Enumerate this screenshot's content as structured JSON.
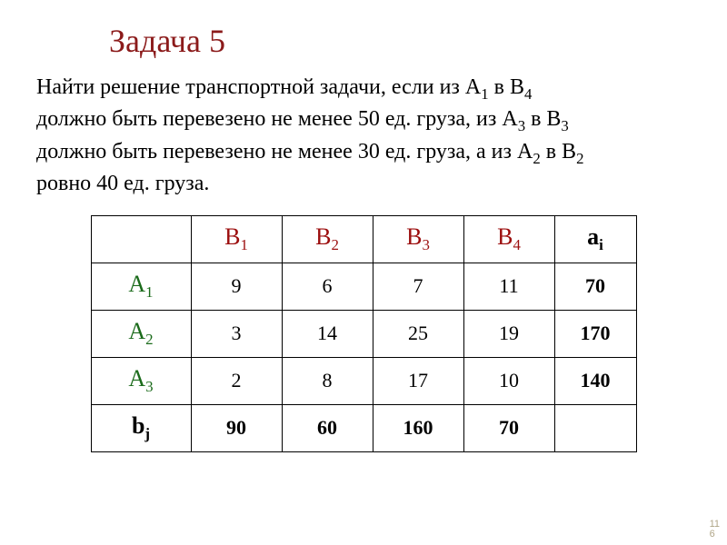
{
  "title": "Задача 5",
  "problem": {
    "line1_pre": "Найти решение транспортной задачи, если из А",
    "a_src1": "1",
    "line1_mid": " в В",
    "b_dst1": "4",
    "line2": "должно быть перевезено не менее 50 ед. груза, из А",
    "a_src2": "3",
    "line2_mid": " в В",
    "b_dst2": "3",
    "line3": "должно быть перевезено не менее 30 ед. груза, а из А",
    "a_src3": "2",
    "line3_mid": " в В",
    "b_dst3": "2",
    "line4": "ровно 40 ед. груза."
  },
  "table": {
    "headers": {
      "b1": "1",
      "b2": "2",
      "b3": "3",
      "b4": "4",
      "ai": "i"
    },
    "row_labels": {
      "a1": "1",
      "a2": "2",
      "a3": "3",
      "bj": "j"
    },
    "Bsym": "В",
    "Asym": "А",
    "aSym": "a",
    "bSym": "b",
    "rows": [
      {
        "c1": "9",
        "c2": "6",
        "c3": "7",
        "c4": "11",
        "a": "70"
      },
      {
        "c1": "3",
        "c2": "14",
        "c3": "25",
        "c4": "19",
        "a": "170"
      },
      {
        "c1": "2",
        "c2": "8",
        "c3": "17",
        "c4": "10",
        "a": "140"
      }
    ],
    "b": {
      "b1": "90",
      "b2": "60",
      "b3": "160",
      "b4": "70"
    }
  },
  "pagenum_top": "11",
  "pagenum_bottom": "6"
}
